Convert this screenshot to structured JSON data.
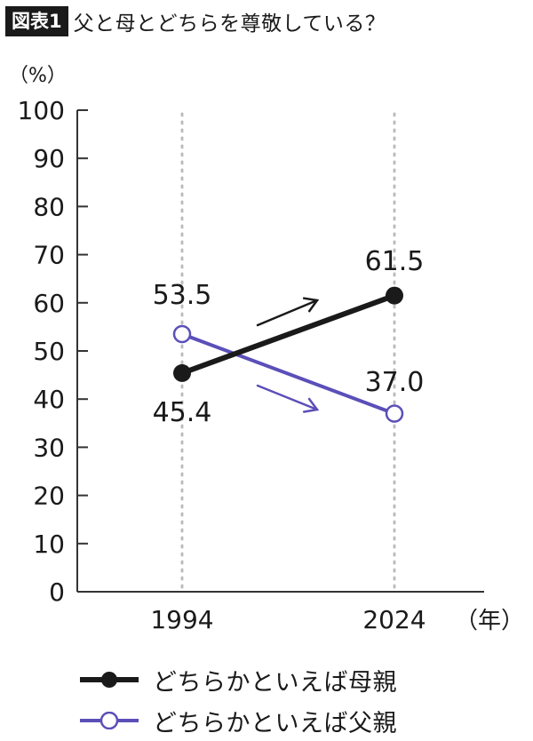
{
  "header": {
    "label": "図表1",
    "title": "父と母とどちらを尊敬している？"
  },
  "chart_data": {
    "type": "line",
    "ylabel": "（%）",
    "xlabel": "（年）",
    "x": [
      "1994",
      "2024"
    ],
    "ylim": [
      0,
      100
    ],
    "yticks": [
      0,
      10,
      20,
      30,
      40,
      50,
      60,
      70,
      80,
      90,
      100
    ],
    "grid": "vertical dotted lines at data years",
    "series": [
      {
        "name": "どちらかといえば母親",
        "values": [
          45.4,
          61.5
        ],
        "labels": [
          "45.4",
          "61.5"
        ],
        "color": "#1a1a1a",
        "marker": "filled-circle"
      },
      {
        "name": "どちらかといえば父親",
        "values": [
          53.5,
          37.0
        ],
        "labels": [
          "53.5",
          "37.0"
        ],
        "color": "#5b4fb8",
        "marker": "open-circle"
      }
    ],
    "legend_position": "bottom"
  }
}
